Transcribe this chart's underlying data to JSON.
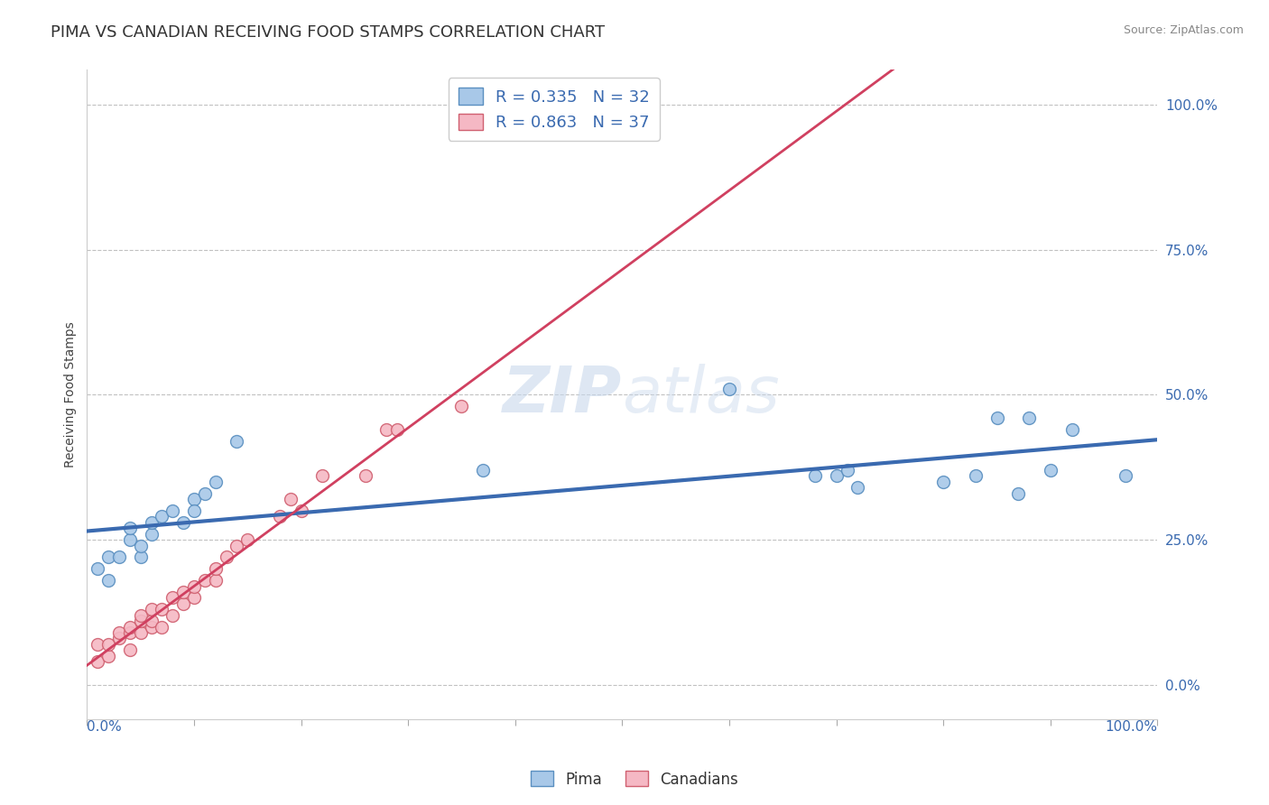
{
  "title": "PIMA VS CANADIAN RECEIVING FOOD STAMPS CORRELATION CHART",
  "source_text": "Source: ZipAtlas.com",
  "ylabel": "Receiving Food Stamps",
  "x_min": 0.0,
  "x_max": 1.0,
  "y_min": -0.06,
  "y_max": 1.06,
  "ytick_labels": [
    "0.0%",
    "25.0%",
    "50.0%",
    "75.0%",
    "100.0%"
  ],
  "ytick_values": [
    0.0,
    0.25,
    0.5,
    0.75,
    1.0
  ],
  "title_fontsize": 13,
  "pima_color": "#A8C8E8",
  "pima_edge_color": "#5A8FC0",
  "canadian_color": "#F5B8C4",
  "canadian_edge_color": "#D06070",
  "pima_line_color": "#3A6AB0",
  "canadian_line_color": "#D04060",
  "legend_pima_label": "R = 0.335   N = 32",
  "legend_canadian_label": "R = 0.863   N = 37",
  "bottom_legend_pima": "Pima",
  "bottom_legend_canadian": "Canadians",
  "watermark_text": "ZIPatlas",
  "background_color": "#FFFFFF",
  "grid_color": "#BBBBBB",
  "marker_size": 100,
  "pima_x": [
    0.01,
    0.02,
    0.02,
    0.03,
    0.04,
    0.04,
    0.05,
    0.05,
    0.06,
    0.06,
    0.07,
    0.08,
    0.09,
    0.1,
    0.1,
    0.11,
    0.12,
    0.14,
    0.37,
    0.6,
    0.68,
    0.7,
    0.71,
    0.72,
    0.8,
    0.83,
    0.85,
    0.87,
    0.88,
    0.9,
    0.92,
    0.97
  ],
  "pima_y": [
    0.2,
    0.18,
    0.22,
    0.22,
    0.25,
    0.27,
    0.22,
    0.24,
    0.26,
    0.28,
    0.29,
    0.3,
    0.28,
    0.32,
    0.3,
    0.33,
    0.35,
    0.42,
    0.37,
    0.51,
    0.36,
    0.36,
    0.37,
    0.34,
    0.35,
    0.36,
    0.46,
    0.33,
    0.46,
    0.37,
    0.44,
    0.36
  ],
  "canadian_x": [
    0.01,
    0.01,
    0.02,
    0.02,
    0.03,
    0.03,
    0.04,
    0.04,
    0.04,
    0.05,
    0.05,
    0.05,
    0.06,
    0.06,
    0.06,
    0.07,
    0.07,
    0.08,
    0.08,
    0.09,
    0.09,
    0.1,
    0.1,
    0.11,
    0.12,
    0.12,
    0.13,
    0.14,
    0.15,
    0.18,
    0.19,
    0.2,
    0.22,
    0.26,
    0.28,
    0.29,
    0.35
  ],
  "canadian_y": [
    0.04,
    0.07,
    0.05,
    0.07,
    0.08,
    0.09,
    0.06,
    0.09,
    0.1,
    0.09,
    0.11,
    0.12,
    0.1,
    0.11,
    0.13,
    0.1,
    0.13,
    0.12,
    0.15,
    0.14,
    0.16,
    0.15,
    0.17,
    0.18,
    0.18,
    0.2,
    0.22,
    0.24,
    0.25,
    0.29,
    0.32,
    0.3,
    0.36,
    0.36,
    0.44,
    0.44,
    0.48
  ]
}
